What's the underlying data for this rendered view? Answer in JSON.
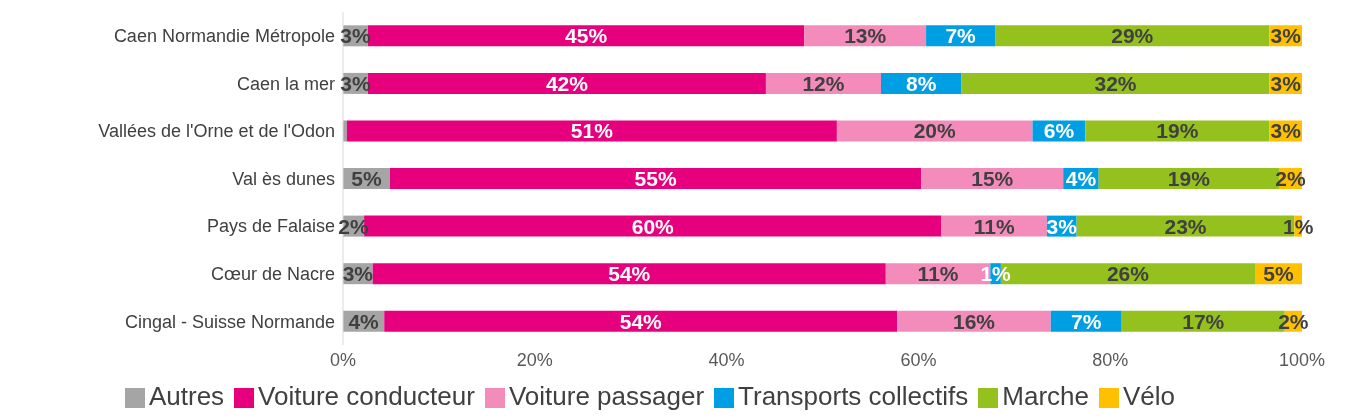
{
  "chart_data": {
    "type": "bar",
    "orientation": "horizontal",
    "stacked": true,
    "legend": "bottom",
    "categories": [
      "Caen Normandie Métropole",
      "Caen la mer",
      "Vallées de l'Orne et de l'Odon",
      "Val ès dunes",
      "Pays de Falaise",
      "Cœur de Nacre",
      "Cingal - Suisse Normande"
    ],
    "xlim": [
      0,
      100
    ],
    "xticks": [
      {
        "value": 0,
        "label": "0%"
      },
      {
        "value": 20,
        "label": "20%"
      },
      {
        "value": 40,
        "label": "40%"
      },
      {
        "value": 60,
        "label": "60%"
      },
      {
        "value": 80,
        "label": "80%"
      },
      {
        "value": 100,
        "label": "100%"
      }
    ],
    "series": [
      {
        "name": "Autres",
        "color": "#a5a5a5",
        "values": [
          2.6,
          2.6,
          0.4,
          4.9,
          2.2,
          3.1,
          4.3
        ],
        "value_labels": [
          "3%",
          "3%",
          null,
          "5%",
          "2%",
          "3%",
          "4%"
        ]
      },
      {
        "name": "Voiture conducteur",
        "color": "#e6007e",
        "values": [
          45.5,
          41.5,
          51.1,
          55.4,
          60.2,
          53.5,
          53.5
        ],
        "value_labels": [
          "45%",
          "42%",
          "51%",
          "55%",
          "60%",
          "54%",
          "54%"
        ]
      },
      {
        "name": "Voiture passager",
        "color": "#f48cbb",
        "values": [
          12.7,
          12.0,
          20.4,
          14.8,
          11.0,
          10.9,
          16.0
        ],
        "value_labels": [
          "13%",
          "12%",
          "20%",
          "15%",
          "11%",
          "11%",
          "16%"
        ]
      },
      {
        "name": "Transports collectifs",
        "color": "#009fe3",
        "values": [
          7.2,
          8.4,
          5.5,
          3.7,
          3.1,
          1.1,
          7.4
        ],
        "value_labels": [
          "7%",
          "8%",
          "6%",
          "4%",
          "3%",
          "1%",
          "7%"
        ]
      },
      {
        "name": "Marche",
        "color": "#95c11f",
        "values": [
          28.6,
          32.1,
          19.2,
          18.8,
          22.7,
          26.5,
          17.0
        ],
        "value_labels": [
          "29%",
          "32%",
          "19%",
          "19%",
          "23%",
          "26%",
          "17%"
        ]
      },
      {
        "name": "Vélo",
        "color": "#ffc000",
        "values": [
          3.4,
          3.4,
          3.4,
          2.4,
          0.8,
          4.9,
          1.8
        ],
        "value_labels": [
          "3%",
          "3%",
          "3%",
          "2%",
          "1%",
          "5%",
          "2%"
        ]
      }
    ]
  }
}
